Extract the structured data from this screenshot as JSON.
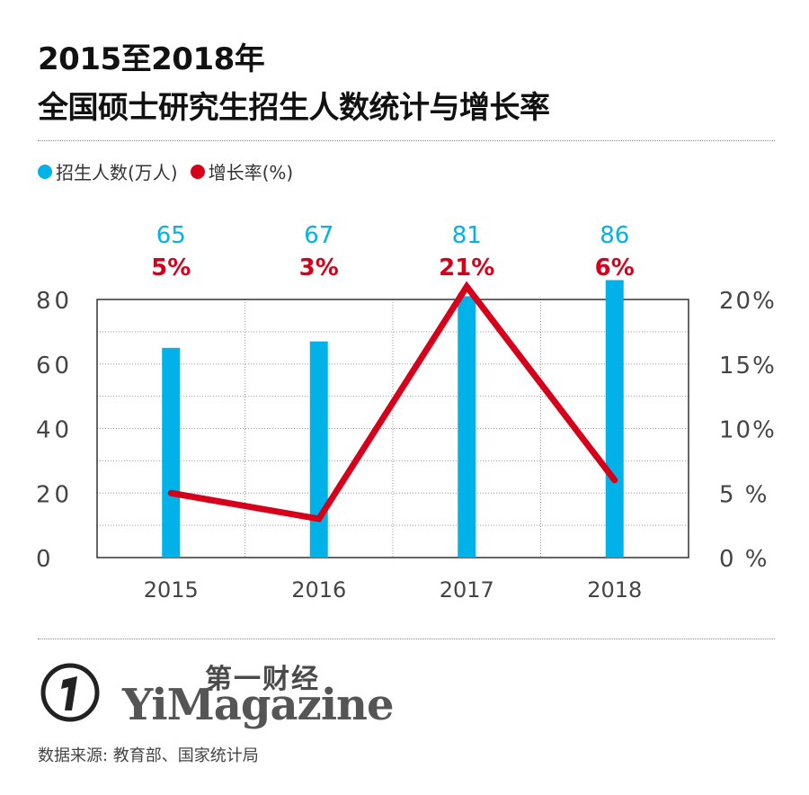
{
  "title_line1": "2015至2018年",
  "title_line2": "全国硕士研究生招生人数统计与增长率",
  "legend": {
    "enroll": "招生人数(万人)",
    "growth": "增长率(%)"
  },
  "source": "数据来源: 教育部、国家统计局",
  "brand": {
    "cn": "第一财经",
    "en": "YiMagazine"
  },
  "colors": {
    "bar": "#00b2e8",
    "line": "#d7001b",
    "grid": "#9a9a9a",
    "text": "#333333"
  },
  "chart_data": {
    "type": "bar",
    "categories": [
      "2015",
      "2016",
      "2017",
      "2018"
    ],
    "series": [
      {
        "name": "招生人数(万人)",
        "type": "bar",
        "axis": "left",
        "values": [
          65,
          67,
          81,
          86
        ],
        "labels": [
          "65",
          "67",
          "81",
          "86"
        ]
      },
      {
        "name": "增长率(%)",
        "type": "line",
        "axis": "right",
        "values": [
          5,
          3,
          21,
          6
        ],
        "labels": [
          "5%",
          "3%",
          "21%",
          "6%"
        ]
      }
    ],
    "left_axis": {
      "ylim": [
        0,
        80
      ],
      "ticks": [
        "0",
        "20",
        "40",
        "60",
        "80"
      ]
    },
    "right_axis": {
      "ylim": [
        0,
        20
      ],
      "ticks": [
        "0 %",
        "5 %",
        "10%",
        "15%",
        "20%"
      ]
    },
    "grid": true
  }
}
